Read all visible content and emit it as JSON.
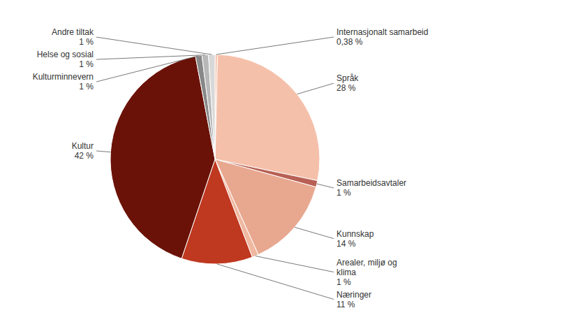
{
  "chart_data": {
    "type": "pie",
    "categories": [
      "Internasjonalt samarbeid",
      "Språk",
      "Samarbeidsavtaler",
      "Kunnskap",
      "Arealer, miljø og\nklima",
      "Næringer",
      "Kultur",
      "Kulturminnevern",
      "Helse og sosial",
      "Andre tiltak"
    ],
    "values": [
      0.38,
      28,
      1,
      14,
      1,
      11,
      42,
      1,
      1,
      1
    ],
    "value_labels": [
      "0,38 %",
      "28 %",
      "1 %",
      "14 %",
      "1 %",
      "11 %",
      "42 %",
      "1 %",
      "1 %",
      "1 %"
    ],
    "data_labels": true,
    "colors": [
      "#f5c0aa",
      "#f5c0aa",
      "#b86055",
      "#e8a890",
      "#f0b8a0",
      "#bf3820",
      "#6b1208",
      "#888888",
      "#b8b8b8",
      "#d8d8d8"
    ]
  }
}
